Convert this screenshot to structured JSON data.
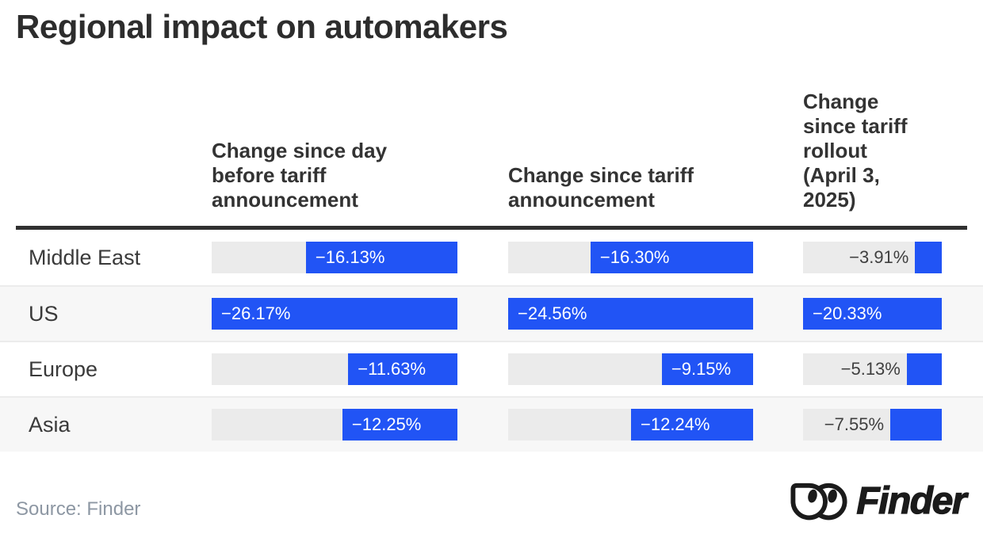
{
  "title": "Regional impact on automakers",
  "source_note": "Source: Finder",
  "logo": {
    "brand": "Finder",
    "icon": "finder-goggles-icon"
  },
  "colors": {
    "bar_blue": "#2154F5",
    "bar_track": "#EBEBEB",
    "row_band": "#F7F7F7",
    "header_rule": "#303030",
    "title_text": "#2D2D2D",
    "value_text_on_bar": "#FFFFFF",
    "value_text_on_track": "#3F3F3F",
    "source_text": "#8D97A3"
  },
  "chart_data": {
    "type": "bar",
    "orientation": "horizontal",
    "value_unit": "%",
    "title": "Regional impact on automakers",
    "categories": [
      "Middle East",
      "US",
      "Europe",
      "Asia"
    ],
    "series": [
      {
        "name": "Change since day before tariff announcement",
        "values": [
          -16.13,
          -26.17,
          -11.63,
          -12.25
        ],
        "labels": [
          "−16.13%",
          "−26.17%",
          "−11.63%",
          "−12.25%"
        ]
      },
      {
        "name": "Change since tariff announcement",
        "values": [
          -16.3,
          -24.56,
          -9.15,
          -12.24
        ],
        "labels": [
          "−16.30%",
          "−24.56%",
          "−9.15%",
          "−12.24%"
        ]
      },
      {
        "name": "Change since tariff rollout (April 3, 2025)",
        "values": [
          -3.91,
          -20.33,
          -5.13,
          -7.55
        ],
        "labels": [
          "−3.91%",
          "−20.33%",
          "−5.13%",
          "−7.55%"
        ]
      }
    ],
    "layout": {
      "bars_right_aligned": true,
      "scale": "each column scaled to its own maximum magnitude (US row = full track)",
      "grid": "off",
      "legend": "none (column headers label the series)"
    }
  }
}
